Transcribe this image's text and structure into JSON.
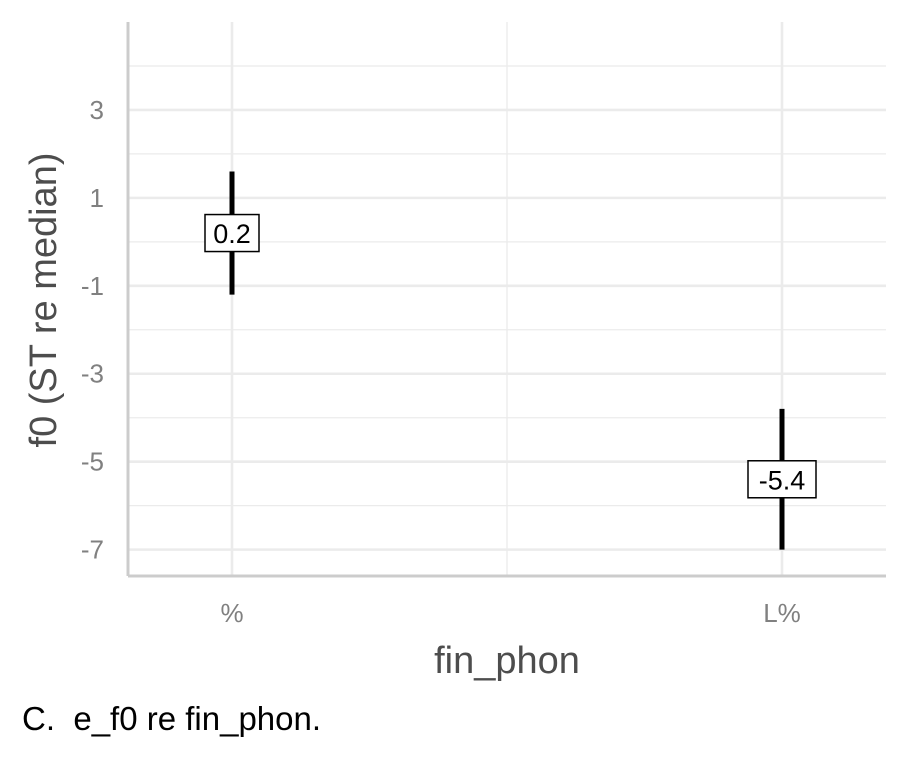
{
  "chart_data": {
    "type": "errorbar",
    "xlabel": "fin_phon",
    "ylabel": "f0 (ST re median)",
    "categories": [
      "%",
      "L%"
    ],
    "values": [
      0.2,
      -5.4
    ],
    "lower": [
      -1.2,
      -7.0
    ],
    "upper": [
      1.6,
      -3.8
    ],
    "data_labels": [
      "0.2",
      "-5.4"
    ],
    "ylim": [
      -7.6,
      5.0
    ],
    "yticks": [
      3,
      1,
      -1,
      -3,
      -5,
      -7
    ],
    "ytick_labels": [
      "3",
      "1",
      "-1",
      "-3",
      "-5",
      "-7"
    ],
    "grid": true
  },
  "caption": "C.  e_f0 re fin_phon.",
  "colors": {
    "grid": "#ebebeb",
    "axis": "#cccccc",
    "mark": "#000000",
    "tick_text": "#808080",
    "title_text": "#4d4d4d"
  }
}
